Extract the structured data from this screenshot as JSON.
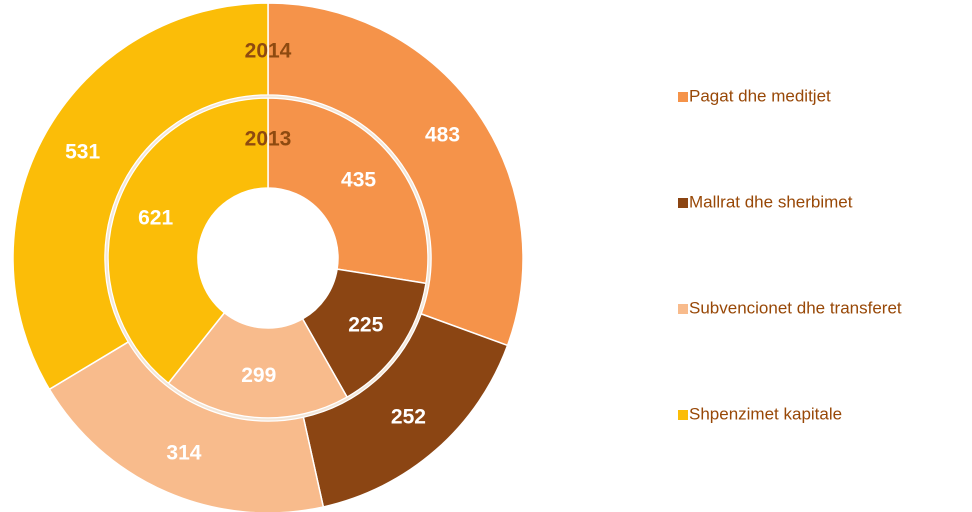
{
  "chart_data": {
    "type": "doughnut",
    "categories": [
      "Pagat dhe meditjet",
      "Mallrat dhe sherbimet",
      "Subvencionet dhe transferet",
      "Shpenzimet kapitale"
    ],
    "colors": [
      "#f5934a",
      "#8b4513",
      "#f8bb8c",
      "#fbbd08"
    ],
    "series": [
      {
        "name": "2014",
        "values": [
          483,
          252,
          314,
          531
        ]
      },
      {
        "name": "2013",
        "values": [
          435,
          225,
          299,
          621
        ]
      }
    ],
    "legend": "right"
  }
}
